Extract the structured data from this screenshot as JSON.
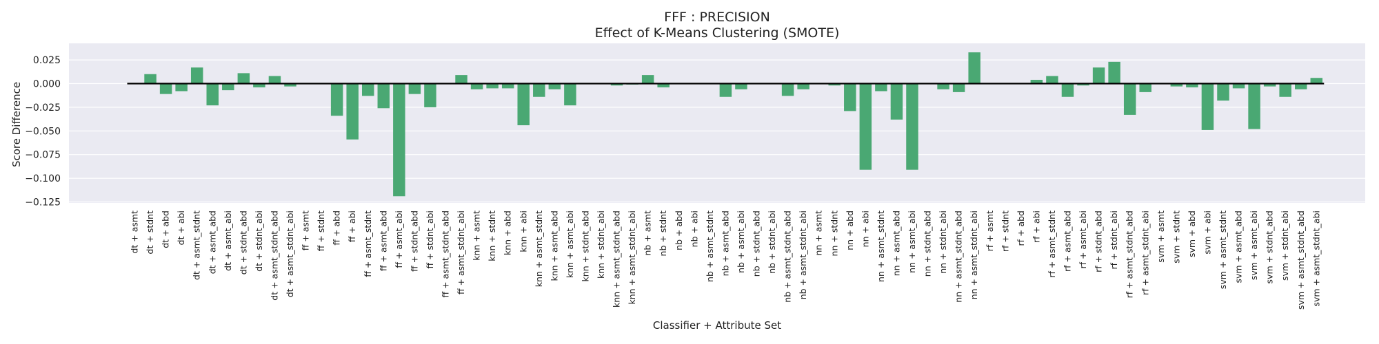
{
  "chart_data": {
    "type": "bar",
    "title": "FFF : PRECISION",
    "subtitle": "Effect of K-Means Clustering (SMOTE)",
    "xlabel": "Classifier + Attribute Set",
    "ylabel": "Score Difference",
    "ylim": [
      -0.125,
      0.04
    ],
    "yticks": [
      0.025,
      0.0,
      -0.025,
      -0.05,
      -0.075,
      -0.1,
      -0.125
    ],
    "ytick_labels": [
      "0.025",
      "0.000",
      "−0.025",
      "−0.050",
      "−0.075",
      "−0.100",
      "−0.125"
    ],
    "grid": true,
    "legend": "none",
    "bar_color": "#4aa873",
    "background_color": "#eaeaf2",
    "grid_color": "#ffffff",
    "zero_line_color": "#000000",
    "categories": [
      "dt + asmt",
      "dt + stdnt",
      "dt + abd",
      "dt + abi",
      "dt + asmt_stdnt",
      "dt + asmt_abd",
      "dt + asmt_abi",
      "dt + stdnt_abd",
      "dt + stdnt_abi",
      "dt + asmt_stdnt_abd",
      "dt + asmt_stdnt_abi",
      "ff + asmt",
      "ff + stdnt",
      "ff + abd",
      "ff + abi",
      "ff + asmt_stdnt",
      "ff + asmt_abd",
      "ff + asmt_abi",
      "ff + stdnt_abd",
      "ff + stdnt_abi",
      "ff + asmt_stdnt_abd",
      "ff + asmt_stdnt_abi",
      "knn + asmt",
      "knn + stdnt",
      "knn + abd",
      "knn + abi",
      "knn + asmt_stdnt",
      "knn + asmt_abd",
      "knn + asmt_abi",
      "knn + stdnt_abd",
      "knn + stdnt_abi",
      "knn + asmt_stdnt_abd",
      "knn + asmt_stdnt_abi",
      "nb + asmt",
      "nb + stdnt",
      "nb + abd",
      "nb + abi",
      "nb + asmt_stdnt",
      "nb + asmt_abd",
      "nb + asmt_abi",
      "nb + stdnt_abd",
      "nb + stdnt_abi",
      "nb + asmt_stdnt_abd",
      "nb + asmt_stdnt_abi",
      "nn + asmt",
      "nn + stdnt",
      "nn + abd",
      "nn + abi",
      "nn + asmt_stdnt",
      "nn + asmt_abd",
      "nn + asmt_abi",
      "nn + stdnt_abd",
      "nn + stdnt_abi",
      "nn + asmt_stdnt_abd",
      "nn + asmt_stdnt_abi",
      "rf + asmt",
      "rf + stdnt",
      "rf + abd",
      "rf + abi",
      "rf + asmt_stdnt",
      "rf + asmt_abd",
      "rf + asmt_abi",
      "rf + stdnt_abd",
      "rf + stdnt_abi",
      "rf + asmt_stdnt_abd",
      "rf + asmt_stdnt_abi",
      "svm + asmt",
      "svm + stdnt",
      "svm + abd",
      "svm + abi",
      "svm + asmt_stdnt",
      "svm + asmt_abd",
      "svm + asmt_abi",
      "svm + stdnt_abd",
      "svm + stdnt_abi",
      "svm + asmt_stdnt_abd",
      "svm + asmt_stdnt_abi"
    ],
    "values": [
      0.0,
      0.01,
      -0.011,
      -0.008,
      0.017,
      -0.023,
      -0.007,
      0.011,
      -0.004,
      0.008,
      -0.003,
      0.0,
      0.0,
      -0.034,
      -0.059,
      -0.013,
      -0.026,
      -0.119,
      -0.011,
      -0.025,
      0.0,
      0.009,
      -0.006,
      -0.005,
      -0.005,
      -0.044,
      -0.014,
      -0.006,
      -0.023,
      0.0,
      0.0,
      -0.002,
      -0.001,
      0.009,
      -0.004,
      0.0,
      0.0,
      0.0,
      -0.014,
      -0.006,
      0.0,
      0.0,
      -0.013,
      -0.006,
      0.0,
      -0.002,
      -0.029,
      -0.091,
      -0.008,
      -0.038,
      -0.091,
      0.0,
      -0.006,
      -0.009,
      0.033,
      0.0,
      0.0,
      0.0,
      0.004,
      0.008,
      -0.014,
      -0.002,
      0.017,
      0.023,
      -0.033,
      -0.009,
      0.0,
      -0.003,
      -0.004,
      -0.049,
      -0.018,
      -0.005,
      -0.048,
      -0.003,
      -0.014,
      -0.006,
      0.006
    ]
  }
}
